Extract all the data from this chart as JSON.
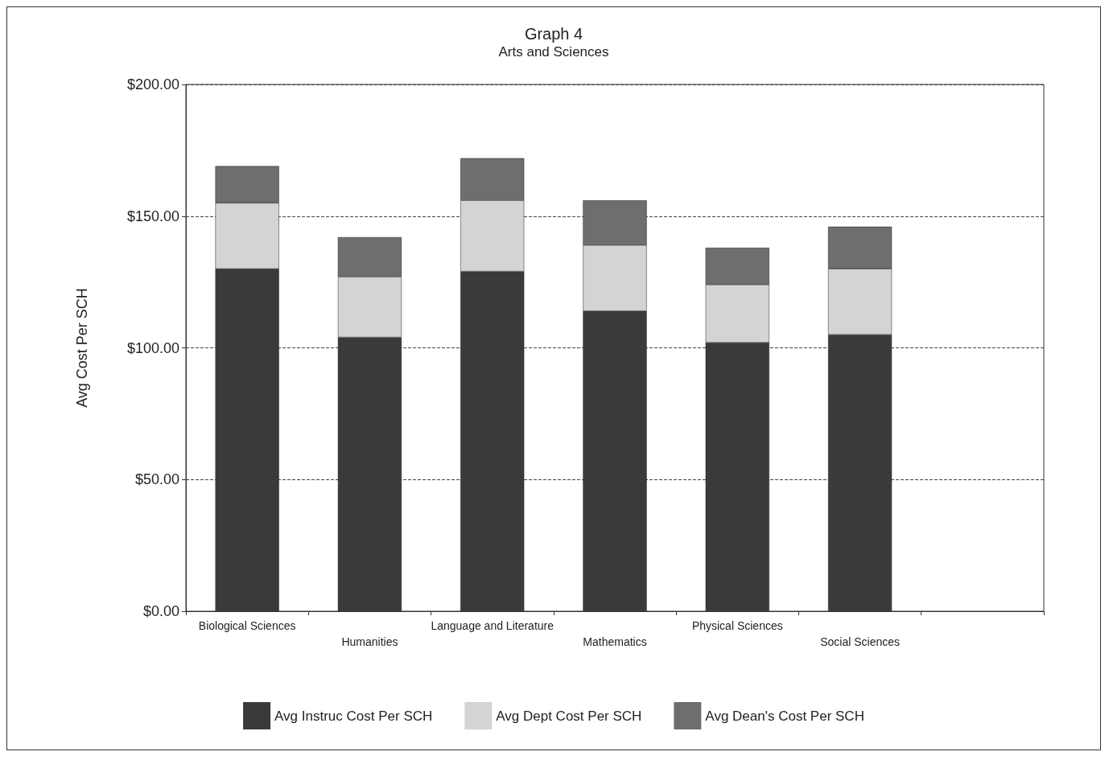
{
  "chart_data": {
    "type": "bar",
    "title": "Graph 4",
    "subtitle": "Arts and Sciences",
    "ylabel": "Avg Cost Per SCH",
    "categories": [
      "Biological Sciences",
      "Humanities",
      "Language and Literature",
      "Mathematics",
      "Physical Sciences",
      "Social Sciences",
      null
    ],
    "stacked": true,
    "series": [
      {
        "name": "Avg Instruc Cost Per SCH",
        "color": "#3a3a3a",
        "values": [
          130,
          104,
          129,
          114,
          102,
          105,
          null
        ]
      },
      {
        "name": "Avg Dept Cost Per SCH",
        "color": "#d4d4d4",
        "values": [
          25,
          23,
          27,
          25,
          22,
          25,
          null
        ]
      },
      {
        "name": "Avg Dean's Cost Per SCH",
        "color": "#6e6e6e",
        "values": [
          14,
          15,
          16,
          17,
          14,
          16,
          null
        ]
      }
    ],
    "ylim": [
      0,
      200
    ],
    "yticks": [
      {
        "value": 0,
        "label": "$0.00"
      },
      {
        "value": 50,
        "label": "$50.00"
      },
      {
        "value": 100,
        "label": "$100.00"
      },
      {
        "value": 150,
        "label": "$150.00"
      },
      {
        "value": 200,
        "label": "$200.00"
      }
    ],
    "grid": "y",
    "legend": "bottom"
  }
}
